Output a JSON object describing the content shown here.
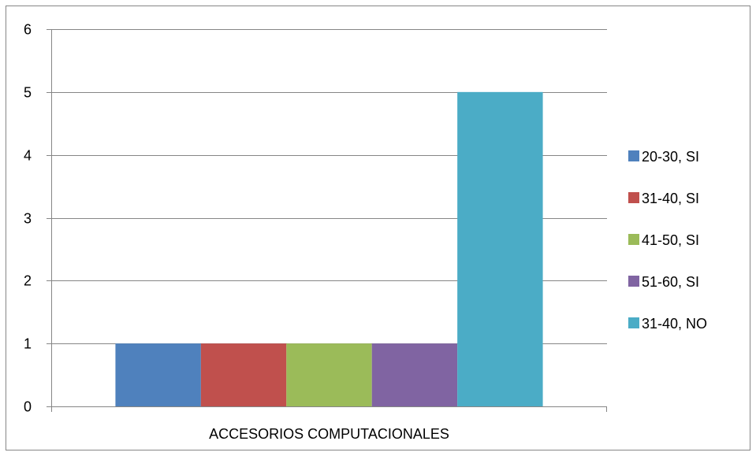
{
  "chart_data": {
    "type": "bar",
    "categories": [
      "ACCESORIOS COMPUTACIONALES"
    ],
    "series": [
      {
        "name": "20-30, SI",
        "values": [
          1
        ],
        "color": "#4F81BD"
      },
      {
        "name": "31-40, SI",
        "values": [
          1
        ],
        "color": "#C0504D"
      },
      {
        "name": "41-50, SI",
        "values": [
          1
        ],
        "color": "#9BBB59"
      },
      {
        "name": "51-60, SI",
        "values": [
          1
        ],
        "color": "#8064A2"
      },
      {
        "name": "31-40, NO",
        "values": [
          5
        ],
        "color": "#4BACC6"
      }
    ],
    "ylim": [
      0,
      6
    ],
    "yticks": [
      0,
      1,
      2,
      3,
      4,
      5,
      6
    ],
    "grid": true,
    "legend": "right"
  }
}
